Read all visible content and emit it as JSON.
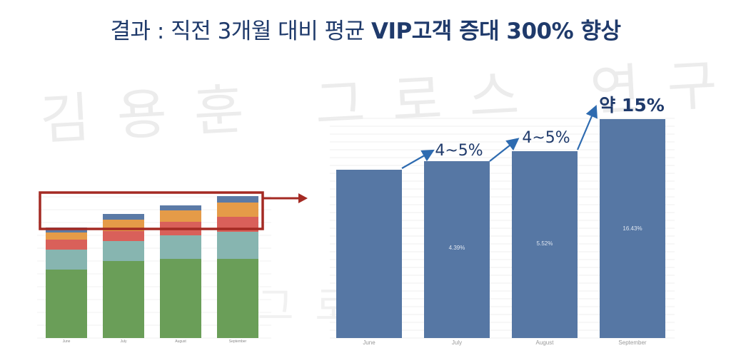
{
  "slide": {
    "title_normal": "결과 : 직전 3개월 대비 평균 ",
    "title_bold": "VIP고객 증대 300% 향상",
    "watermark": "김용훈 그로스 연구소",
    "watermark_partial": "그로"
  },
  "chart_data": [
    {
      "type": "bar",
      "stacked": true,
      "categories": [
        "June",
        "July",
        "August",
        "September"
      ],
      "series": [
        {
          "color": "#6a9e58",
          "values": [
            96,
            108,
            111,
            111
          ]
        },
        {
          "color": "#87b5b0",
          "values": [
            28,
            28,
            33,
            38
          ]
        },
        {
          "color": "#d9605a",
          "values": [
            14,
            14,
            19,
            21
          ]
        },
        {
          "color": "#e59b48",
          "values": [
            10,
            16,
            16,
            20
          ]
        },
        {
          "color": "#5b7aa6",
          "values": [
            7,
            8,
            7,
            9
          ]
        }
      ],
      "highlight": "top segments (VIP)",
      "grid": true
    },
    {
      "type": "bar",
      "categories": [
        "June",
        "July",
        "August",
        "September"
      ],
      "values": [
        236,
        248,
        262,
        307
      ],
      "bar_labels": [
        "",
        "4.39%",
        "5.52%",
        "16.43%"
      ],
      "color": "#5677a4",
      "annotations": [
        "4~5%",
        "4~5%",
        "약 15%"
      ],
      "grid": true
    }
  ],
  "colors": {
    "title": "#1f3a6b",
    "highlight_box": "#a42a23",
    "arrow": "#2e6bb0",
    "annotation": "#1f3a6b"
  }
}
